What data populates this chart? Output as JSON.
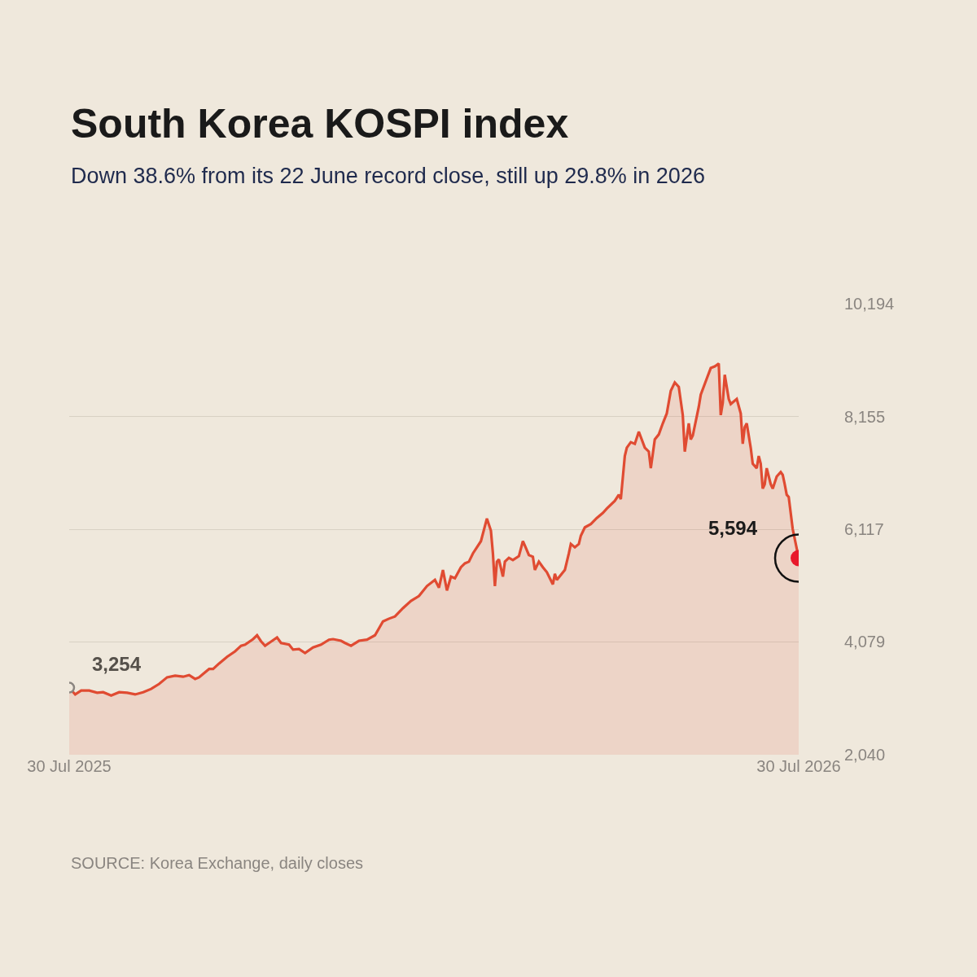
{
  "chart_data": {
    "type": "area",
    "title": "South Korea KOSPI index",
    "subtitle": "Down 38.6% from its 22 June record close, still up 29.8% in 2026",
    "x": [
      "2025-07-30",
      "2025-08-02",
      "2025-08-05",
      "2025-08-09",
      "2025-08-13",
      "2025-08-16",
      "2025-08-20",
      "2025-08-24",
      "2025-08-28",
      "2025-09-01",
      "2025-09-05",
      "2025-09-09",
      "2025-09-13",
      "2025-09-17",
      "2025-09-21",
      "2025-09-25",
      "2025-09-28",
      "2025-10-01",
      "2025-10-03",
      "2025-10-05",
      "2025-10-08",
      "2025-10-10",
      "2025-10-13",
      "2025-10-17",
      "2025-10-21",
      "2025-10-24",
      "2025-10-26",
      "2025-10-30",
      "2025-11-01",
      "2025-11-03",
      "2025-11-05",
      "2025-11-07",
      "2025-11-11",
      "2025-11-13",
      "2025-11-17",
      "2025-11-19",
      "2025-11-22",
      "2025-11-25",
      "2025-11-29",
      "2025-12-03",
      "2025-12-07",
      "2025-12-09",
      "2025-12-13",
      "2025-12-15",
      "2025-12-18",
      "2025-12-22",
      "2025-12-26",
      "2025-12-30",
      "2026-01-03",
      "2026-01-06",
      "2026-01-09",
      "2026-01-13",
      "2026-01-17",
      "2026-01-21",
      "2026-01-25",
      "2026-01-29",
      "2026-01-31",
      "2026-02-02",
      "2026-02-04",
      "2026-02-06",
      "2026-02-08",
      "2026-02-11",
      "2026-02-13",
      "2026-02-15",
      "2026-02-17",
      "2026-02-21",
      "2026-02-24",
      "2026-02-26",
      "2026-02-27",
      "2026-02-28",
      "2026-03-01",
      "2026-03-02",
      "2026-03-04",
      "2026-03-05",
      "2026-03-07",
      "2026-03-09",
      "2026-03-12",
      "2026-03-14",
      "2026-03-15",
      "2026-03-17",
      "2026-03-19",
      "2026-03-20",
      "2026-03-22",
      "2026-03-24",
      "2026-03-26",
      "2026-03-29",
      "2026-03-30",
      "2026-03-31",
      "2026-04-04",
      "2026-04-06",
      "2026-04-07",
      "2026-04-09",
      "2026-04-11",
      "2026-04-12",
      "2026-04-14",
      "2026-04-17",
      "2026-04-20",
      "2026-04-23",
      "2026-04-25",
      "2026-04-29",
      "2026-05-01",
      "2026-05-02",
      "2026-05-04",
      "2026-05-05",
      "2026-05-07",
      "2026-05-09",
      "2026-05-11",
      "2026-05-14",
      "2026-05-16",
      "2026-05-17",
      "2026-05-19",
      "2026-05-21",
      "2026-05-23",
      "2026-05-25",
      "2026-05-27",
      "2026-05-29",
      "2026-05-31",
      "2026-06-02",
      "2026-06-03",
      "2026-06-05",
      "2026-06-06",
      "2026-06-07",
      "2026-06-10",
      "2026-06-11",
      "2026-06-14",
      "2026-06-16",
      "2026-06-18",
      "2026-06-20",
      "2026-06-21",
      "2026-06-22",
      "2026-06-23",
      "2026-06-25",
      "2026-06-26",
      "2026-06-29",
      "2026-07-01",
      "2026-07-02",
      "2026-07-03",
      "2026-07-04",
      "2026-07-06",
      "2026-07-07",
      "2026-07-09",
      "2026-07-10",
      "2026-07-11",
      "2026-07-12",
      "2026-07-13",
      "2026-07-14",
      "2026-07-16",
      "2026-07-17",
      "2026-07-19",
      "2026-07-21",
      "2026-07-22",
      "2026-07-23",
      "2026-07-24",
      "2026-07-25",
      "2026-07-27",
      "2026-07-30"
    ],
    "series": [
      {
        "color": "#e04b32",
        "values": [
          3254,
          3130,
          3200,
          3200,
          3160,
          3170,
          3110,
          3170,
          3160,
          3130,
          3170,
          3230,
          3320,
          3440,
          3470,
          3450,
          3480,
          3410,
          3440,
          3500,
          3590,
          3590,
          3690,
          3810,
          3910,
          4010,
          4030,
          4130,
          4200,
          4090,
          4010,
          4060,
          4160,
          4060,
          4030,
          3940,
          3950,
          3880,
          3980,
          4030,
          4120,
          4130,
          4100,
          4060,
          4010,
          4100,
          4120,
          4200,
          4450,
          4500,
          4540,
          4690,
          4820,
          4910,
          5090,
          5200,
          5060,
          5380,
          5010,
          5260,
          5230,
          5430,
          5500,
          5530,
          5680,
          5900,
          6310,
          6090,
          5680,
          5090,
          5530,
          5570,
          5260,
          5530,
          5600,
          5560,
          5630,
          5900,
          5820,
          5650,
          5620,
          5380,
          5530,
          5430,
          5340,
          5120,
          5310,
          5200,
          5380,
          5680,
          5850,
          5790,
          5850,
          6000,
          6150,
          6210,
          6320,
          6410,
          6490,
          6630,
          6740,
          6660,
          7440,
          7590,
          7690,
          7660,
          7880,
          7590,
          7520,
          7220,
          7740,
          7830,
          8030,
          8210,
          8620,
          8770,
          8690,
          8180,
          7520,
          8030,
          7740,
          7810,
          8330,
          8550,
          8840,
          9030,
          9060,
          9110,
          8180,
          8400,
          8910,
          8470,
          8380,
          8470,
          8210,
          7660,
          7960,
          8030,
          7590,
          7300,
          7220,
          7440,
          7300,
          6850,
          6930,
          7220,
          6930,
          6850,
          7070,
          7150,
          7100,
          6930,
          6740,
          6700,
          6120,
          5594
        ]
      }
    ],
    "xlim": [
      "2025-07-30",
      "2026-07-30"
    ],
    "xticks": [
      {
        "value": "2025-07-30",
        "label": "30 Jul 2025"
      },
      {
        "value": "2026-07-30",
        "label": "30 Jul 2026"
      }
    ],
    "ylim": [
      2040,
      10194
    ],
    "yticks": [
      {
        "value": 2040,
        "label": "2,040"
      },
      {
        "value": 4079,
        "label": "4,079"
      },
      {
        "value": 6117,
        "label": "6,117"
      },
      {
        "value": 8155,
        "label": "8,155"
      },
      {
        "value": 10194,
        "label": "10,194"
      }
    ],
    "grid": "y",
    "annotations": [
      {
        "text": "3,254",
        "x": "2025-07-30",
        "y": 3254
      },
      {
        "text": "5,594",
        "x": "2026-07-30",
        "y": 5594
      },
      "SOURCE: Korea Exchange, daily closes"
    ]
  }
}
